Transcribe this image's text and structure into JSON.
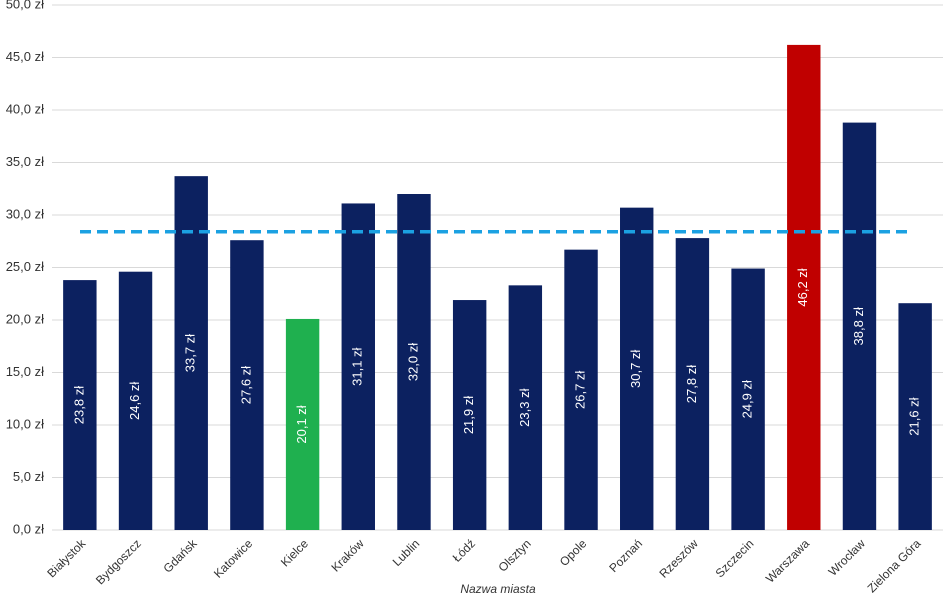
{
  "chart_data": {
    "type": "bar",
    "x_label": "Nazwa miasta",
    "categories": [
      "Białystok",
      "Bydgoszcz",
      "Gdańsk",
      "Katowice",
      "Kielce",
      "Kraków",
      "Lublin",
      "Łódź",
      "Olsztyn",
      "Opole",
      "Poznań",
      "Rzeszów",
      "Szczecin",
      "Warszawa",
      "Wrocław",
      "Zielona Góra"
    ],
    "values": [
      23.8,
      24.6,
      33.7,
      27.6,
      20.1,
      31.1,
      32.0,
      21.9,
      23.3,
      26.7,
      30.7,
      27.8,
      24.9,
      46.2,
      38.8,
      21.6
    ],
    "value_labels": [
      "23,8 zł",
      "24,6 zł",
      "33,7 zł",
      "27,6 zł",
      "20,1 zł",
      "31,1 zł",
      "32,0 zł",
      "21,9 zł",
      "23,3 zł",
      "26,7 zł",
      "30,7 zł",
      "27,8 zł",
      "24,9 zł",
      "46,2 zł",
      "38,8 zł",
      "21,6 zł"
    ],
    "colors": [
      "#0c2160",
      "#0c2160",
      "#0c2160",
      "#0c2160",
      "#1fb04f",
      "#0c2160",
      "#0c2160",
      "#0c2160",
      "#0c2160",
      "#0c2160",
      "#0c2160",
      "#0c2160",
      "#0c2160",
      "#c00000",
      "#0c2160",
      "#0c2160"
    ],
    "average_line": {
      "value": 28.4,
      "color": "#1ba1e2"
    },
    "ylim": [
      0,
      50
    ],
    "yticks": [
      {
        "value": 0,
        "label": "0,0 zł"
      },
      {
        "value": 5,
        "label": "5,0 zł"
      },
      {
        "value": 10,
        "label": "10,0 zł"
      },
      {
        "value": 15,
        "label": "15,0 zł"
      },
      {
        "value": 20,
        "label": "20,0 zł"
      },
      {
        "value": 25,
        "label": "25,0 zł"
      },
      {
        "value": 30,
        "label": "30,0 zł"
      },
      {
        "value": 35,
        "label": "35,0 zł"
      },
      {
        "value": 40,
        "label": "40,0 zł"
      },
      {
        "value": 45,
        "label": "45,0 zł"
      },
      {
        "value": 50,
        "label": "50,0 zł"
      }
    ],
    "grid": true
  }
}
